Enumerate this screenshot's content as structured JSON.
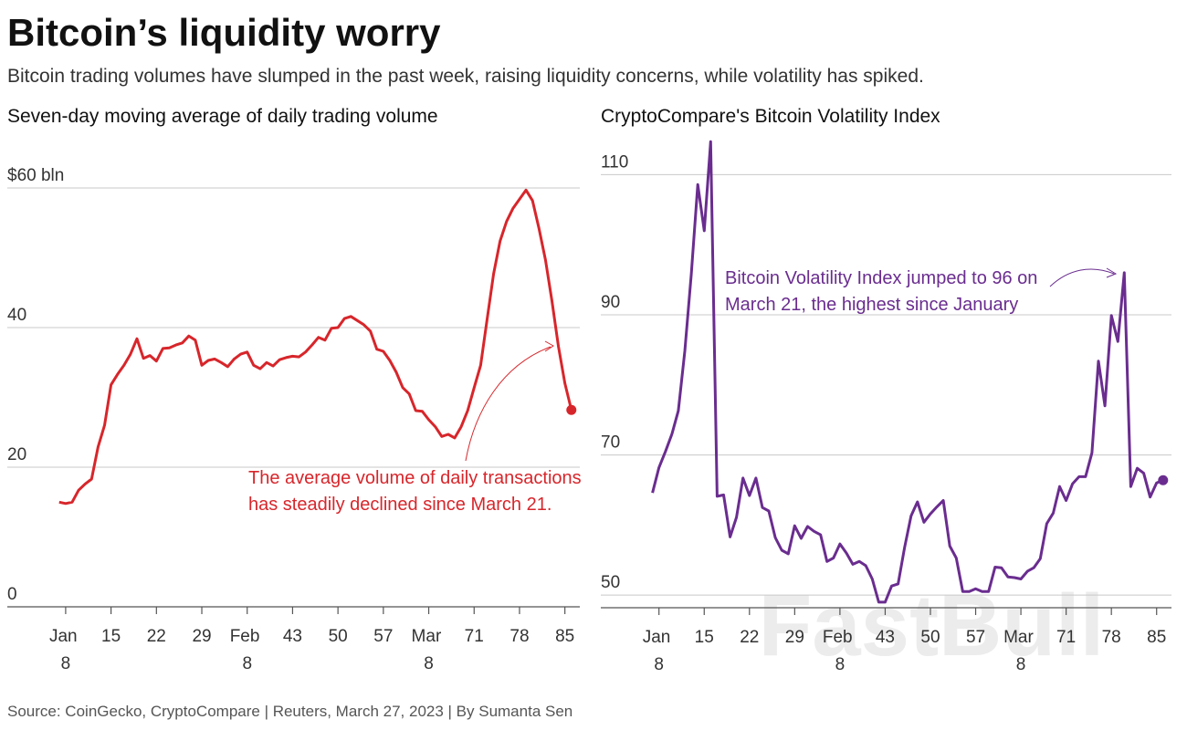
{
  "title": "Bitcoin’s liquidity worry",
  "subtitle": "Bitcoin trading volumes have slumped in the past week, raising liquidity concerns, while volatility has spiked.",
  "source": "Source: CoinGecko, CryptoCompare | Reuters, March 27, 2023 | By Sumanta Sen",
  "watermark": "FastBull",
  "chart_data": [
    {
      "type": "line",
      "title": "Seven-day moving average of daily trading volume",
      "color": "#d7262b",
      "annotation": [
        "The average volume of daily transactions",
        "has steadily declined since March 21."
      ],
      "x": [
        7,
        8,
        9,
        10,
        11,
        12,
        13,
        14,
        15,
        16,
        17,
        18,
        19,
        20,
        21,
        22,
        23,
        24,
        25,
        26,
        27,
        28,
        29,
        30,
        31,
        32,
        33,
        34,
        35,
        36,
        37,
        38,
        39,
        40,
        41,
        42,
        43,
        44,
        45,
        46,
        47,
        48,
        49,
        50,
        51,
        52,
        53,
        54,
        55,
        56,
        57,
        58,
        59,
        60,
        61,
        62,
        63,
        64,
        65,
        66,
        67,
        68,
        69,
        70,
        71,
        72,
        73,
        74,
        75,
        76,
        77,
        78,
        79,
        80,
        81,
        82,
        83,
        84,
        85,
        86
      ],
      "values": [
        15.0,
        14.8,
        15.0,
        16.7,
        17.6,
        18.3,
        22.9,
        26.0,
        31.8,
        33.3,
        34.6,
        36.2,
        38.4,
        35.6,
        36.0,
        35.2,
        37.0,
        37.1,
        37.5,
        37.8,
        38.8,
        38.2,
        34.6,
        35.3,
        35.5,
        35.0,
        34.4,
        35.5,
        36.2,
        36.5,
        34.6,
        34.1,
        35.0,
        34.5,
        35.4,
        35.7,
        35.9,
        35.8,
        36.5,
        37.5,
        38.6,
        38.2,
        39.9,
        40.0,
        41.3,
        41.6,
        41.0,
        40.4,
        39.5,
        36.9,
        36.6,
        35.3,
        33.6,
        31.4,
        30.5,
        28.1,
        28.0,
        26.8,
        25.8,
        24.4,
        24.7,
        24.2,
        25.8,
        28.1,
        31.4,
        34.6,
        41.2,
        47.7,
        52.4,
        55.2,
        57.1,
        58.4,
        59.7,
        58.2,
        54.2,
        49.7,
        43.8,
        37.3,
        32.0,
        28.2
      ],
      "xlim": [
        -1,
        87.3
      ],
      "xticks": [
        {
          "value": 8,
          "label": "Jan 8"
        },
        15,
        22,
        29,
        {
          "value": 36,
          "label": "Feb 8"
        },
        43,
        50,
        57,
        {
          "value": 64,
          "label": "Mar 8"
        },
        71,
        78,
        85
      ],
      "ylim": [
        0,
        60
      ],
      "yticks": [
        0,
        20,
        40,
        {
          "value": 60,
          "label": "$60 bln"
        }
      ],
      "grid": true
    },
    {
      "type": "line",
      "title": "CryptoCompare's Bitcoin Volatility Index",
      "color": "#6a2d8f",
      "annotation": [
        "Bitcoin Volatility Index jumped to 96 on",
        "March 21, the highest since January"
      ],
      "x": [
        7,
        8,
        9,
        10,
        11,
        12,
        13,
        14,
        15,
        16,
        17,
        18,
        19,
        20,
        21,
        22,
        23,
        24,
        25,
        26,
        27,
        28,
        29,
        30,
        31,
        32,
        33,
        34,
        35,
        36,
        37,
        38,
        39,
        40,
        41,
        42,
        43,
        44,
        45,
        46,
        47,
        48,
        49,
        50,
        51,
        52,
        53,
        54,
        55,
        56,
        57,
        58,
        59,
        60,
        61,
        62,
        63,
        64,
        65,
        66,
        67,
        68,
        69,
        70,
        71,
        72,
        73,
        74,
        75,
        76,
        77,
        78,
        79,
        80,
        81,
        82,
        83,
        84,
        85,
        86
      ],
      "values": [
        64.6,
        68.2,
        70.5,
        73.0,
        76.3,
        84.8,
        95.8,
        108.6,
        102.0,
        114.7,
        64.1,
        64.3,
        58.3,
        61.1,
        66.7,
        64.2,
        66.7,
        62.5,
        62.0,
        58.2,
        56.4,
        55.9,
        59.9,
        58.1,
        59.8,
        59.1,
        58.6,
        54.8,
        55.3,
        57.3,
        56.0,
        54.4,
        54.8,
        54.2,
        52.3,
        49.0,
        49.0,
        51.3,
        51.6,
        56.8,
        61.3,
        63.3,
        60.4,
        61.6,
        62.6,
        63.5,
        57.0,
        55.3,
        50.5,
        50.5,
        50.9,
        50.5,
        50.5,
        54.0,
        53.9,
        52.6,
        52.5,
        52.3,
        53.4,
        53.9,
        55.2,
        60.2,
        61.7,
        65.5,
        63.5,
        65.9,
        66.9,
        66.9,
        70.3,
        83.4,
        77.0,
        89.9,
        86.2,
        96.0,
        65.5,
        68.1,
        67.4,
        64.0,
        66.0,
        66.4
      ],
      "xlim": [
        -1,
        87.3
      ],
      "xticks": [
        {
          "value": 8,
          "label": "Jan 8"
        },
        15,
        22,
        29,
        {
          "value": 36,
          "label": "Feb 8"
        },
        43,
        50,
        57,
        {
          "value": 64,
          "label": "Mar 8"
        },
        71,
        78,
        85
      ],
      "ylim": [
        48.2,
        118
      ],
      "yticks": [
        50,
        70,
        90,
        110
      ],
      "grid": true
    }
  ]
}
